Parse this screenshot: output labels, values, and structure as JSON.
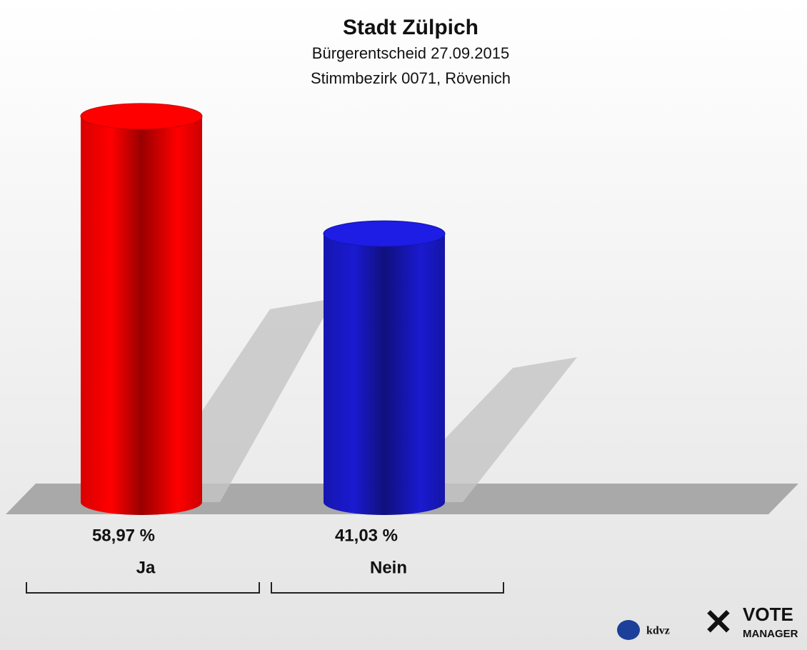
{
  "chart_data": {
    "type": "bar",
    "title": "Stadt Zülpich",
    "subtitle": [
      "Bürgerentscheid 27.09.2015",
      "Stimmbezirk 0071, Rövenich"
    ],
    "categories": [
      "Ja",
      "Nein"
    ],
    "values": [
      58.97,
      41.03
    ],
    "value_labels": [
      "58,97 %",
      "41,03 %"
    ],
    "colors": [
      "#ff0000",
      "#1a1ad0"
    ],
    "annotations": [
      "kdvz",
      "VOTE",
      "MANAGER"
    ]
  }
}
